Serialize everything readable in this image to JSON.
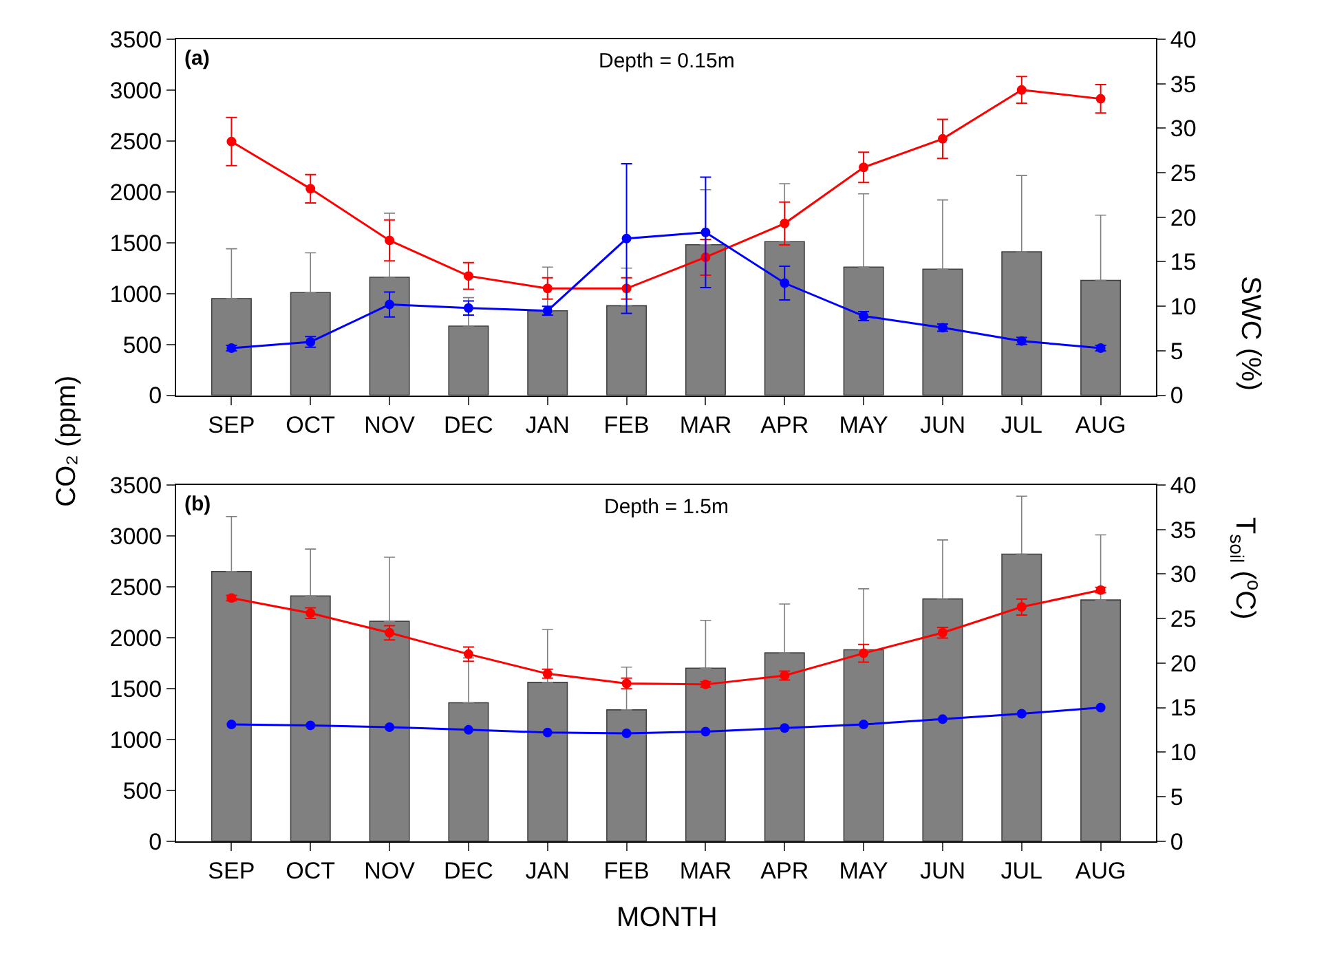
{
  "chart_data": [
    {
      "type": "bar",
      "title": "Depth = 0.15m",
      "annotations": [
        "(a)"
      ],
      "ylabel": "CO₂ (ppm)",
      "y2label": "SWC (%)",
      "categories": [
        "SEP",
        "OCT",
        "NOV",
        "DEC",
        "JAN",
        "FEB",
        "MAR",
        "APR",
        "MAY",
        "JUN",
        "JUL",
        "AUG"
      ],
      "ylim": [
        0,
        3500
      ],
      "yticks": [
        0,
        500,
        1000,
        1500,
        2000,
        2500,
        3000,
        3500
      ],
      "y2lim": [
        0,
        40
      ],
      "y2ticks": [
        0,
        5,
        10,
        15,
        20,
        25,
        30,
        35,
        40
      ],
      "marker": "circle",
      "series": [
        {
          "color": "#808080",
          "values": [
            950,
            1010,
            1160,
            680,
            830,
            880,
            1480,
            1510,
            1260,
            1240,
            1410,
            1130
          ],
          "errors": [
            [
              950,
              1440
            ],
            [
              1010,
              1400
            ],
            [
              1160,
              1790
            ],
            [
              680,
              960
            ],
            [
              830,
              1260
            ],
            [
              880,
              1250
            ],
            [
              1480,
              2020
            ],
            [
              1510,
              2080
            ],
            [
              1260,
              1980
            ],
            [
              1240,
              1920
            ],
            [
              1410,
              2160
            ],
            [
              1130,
              1770
            ]
          ]
        },
        {
          "type": "line",
          "axis": "y2",
          "color": "#ff0000",
          "values": [
            28.5,
            23.2,
            17.4,
            13.4,
            12.0,
            12.0,
            15.5,
            19.3,
            25.6,
            28.8,
            34.3,
            33.3
          ],
          "errors": [
            2.7,
            1.6,
            2.3,
            1.5,
            1.2,
            1.2,
            2.0,
            2.4,
            1.7,
            2.2,
            1.5,
            1.6
          ]
        },
        {
          "type": "line",
          "axis": "y2",
          "color": "#0000ff",
          "values": [
            5.3,
            6.0,
            10.2,
            9.8,
            9.5,
            17.6,
            18.3,
            12.6,
            8.9,
            7.6,
            6.1,
            5.3
          ],
          "errors": [
            0.3,
            0.6,
            1.4,
            0.8,
            0.5,
            8.4,
            6.2,
            1.9,
            0.5,
            0.4,
            0.4,
            0.3
          ]
        }
      ]
    },
    {
      "type": "bar",
      "title": "Depth = 1.5m",
      "annotations": [
        "(b)"
      ],
      "xlabel": "MONTH",
      "y2label": "T$_{soil}$ ($^{o}$C)",
      "categories": [
        "SEP",
        "OCT",
        "NOV",
        "DEC",
        "JAN",
        "FEB",
        "MAR",
        "APR",
        "MAY",
        "JUN",
        "JUL",
        "AUG"
      ],
      "ylim": [
        0,
        3500
      ],
      "yticks": [
        0,
        500,
        1000,
        1500,
        2000,
        2500,
        3000,
        3500
      ],
      "y2lim": [
        0,
        40
      ],
      "y2ticks": [
        0,
        5,
        10,
        15,
        20,
        25,
        30,
        35,
        40
      ],
      "marker": "circle",
      "series": [
        {
          "color": "#808080",
          "values": [
            2650,
            2410,
            2160,
            1360,
            1560,
            1290,
            1700,
            1850,
            1880,
            2380,
            2820,
            2370
          ],
          "errors": [
            [
              2650,
              3190
            ],
            [
              2410,
              2870
            ],
            [
              2160,
              2790
            ],
            [
              1360,
              1800
            ],
            [
              1560,
              2080
            ],
            [
              1290,
              1710
            ],
            [
              1700,
              2170
            ],
            [
              1850,
              2330
            ],
            [
              1880,
              2480
            ],
            [
              2380,
              2960
            ],
            [
              2820,
              3390
            ],
            [
              2370,
              3010
            ]
          ]
        },
        {
          "type": "line",
          "axis": "y2",
          "color": "#ff0000",
          "values": [
            27.3,
            25.6,
            23.4,
            21.0,
            18.8,
            17.7,
            17.6,
            18.6,
            21.1,
            23.4,
            26.3,
            28.2
          ],
          "errors": [
            0.3,
            0.6,
            0.8,
            0.8,
            0.5,
            0.6,
            0.3,
            0.5,
            1.0,
            0.6,
            0.9,
            0.3
          ]
        },
        {
          "type": "line",
          "axis": "y2",
          "color": "#0000ff",
          "values": [
            13.1,
            13.0,
            12.8,
            12.5,
            12.2,
            12.1,
            12.3,
            12.7,
            13.1,
            13.7,
            14.3,
            15.0
          ]
        }
      ]
    }
  ]
}
